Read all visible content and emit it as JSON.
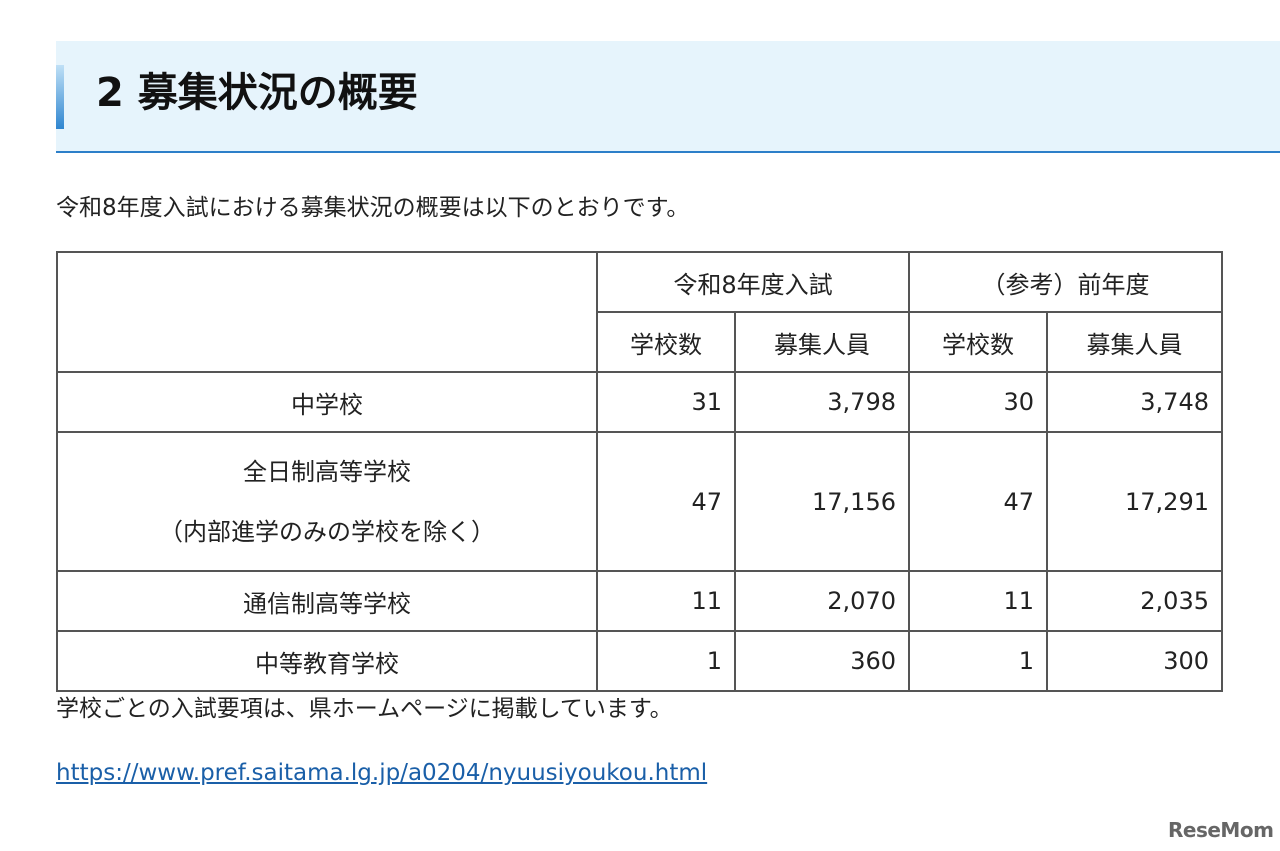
{
  "heading": {
    "title": "2 募集状況の概要"
  },
  "intro": "令和8年度入試における募集状況の概要は以下のとおりです。",
  "table": {
    "groups": [
      "令和8年度入試",
      "（参考）前年度"
    ],
    "subheaders": [
      "学校数",
      "募集人員",
      "学校数",
      "募集人員"
    ],
    "rows": [
      {
        "label": "中学校",
        "values": [
          "31",
          "3,798",
          "30",
          "3,748"
        ]
      },
      {
        "label": "全日制高等学校",
        "label2": "（内部進学のみの学校を除く）",
        "values": [
          "47",
          "17,156",
          "47",
          "17,291"
        ]
      },
      {
        "label": "通信制高等学校",
        "values": [
          "11",
          "2,070",
          "11",
          "2,035"
        ]
      },
      {
        "label": "中等教育学校",
        "values": [
          "1",
          "360",
          "1",
          "300"
        ]
      }
    ]
  },
  "note": "学校ごとの入試要項は、県ホームページに掲載しています。",
  "link": "https://www.pref.saitama.lg.jp/a0204/nyuusiyoukou.html",
  "logo": "ReseMom"
}
